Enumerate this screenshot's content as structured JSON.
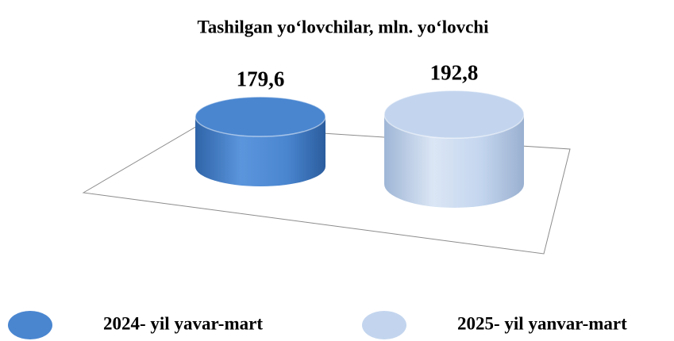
{
  "chart_data": {
    "type": "cylinder",
    "title": "Tashilgan yo‘lovchilar, mln. yo‘lovchi",
    "series": [
      {
        "name": "2024- yil yavar-mart",
        "color": "#4a86d0",
        "values": [
          179.6
        ],
        "value_labels": [
          "179,6"
        ]
      },
      {
        "name": "2025- yil yanvar-mart",
        "color": "#c3d5ee",
        "values": [
          192.8
        ],
        "value_labels": [
          "192,8"
        ]
      }
    ]
  }
}
